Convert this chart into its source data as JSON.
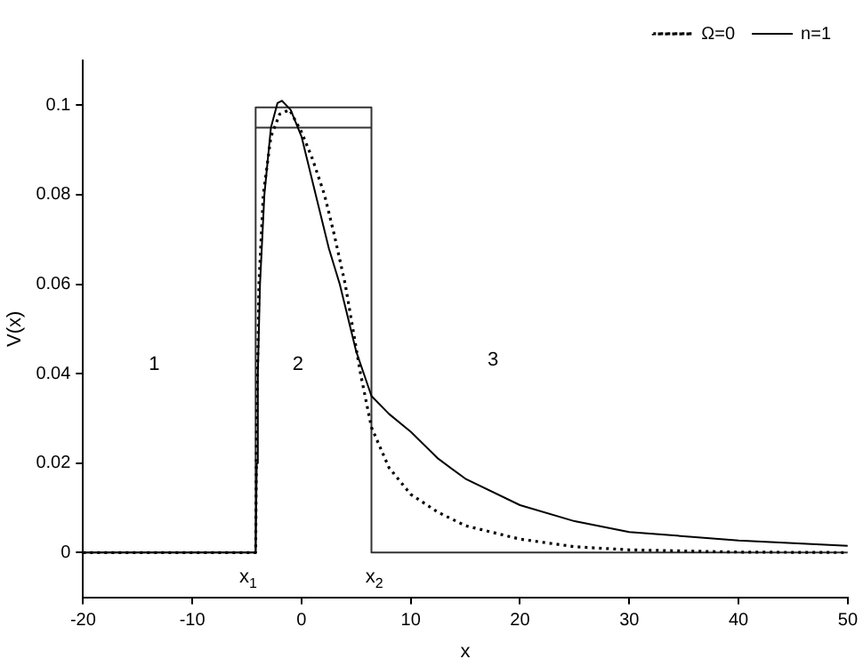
{
  "chart_data": {
    "type": "line",
    "xlabel": "x",
    "ylabel": "V(x)",
    "xlim": [
      -20,
      50
    ],
    "ylim": [
      -0.01,
      0.11
    ],
    "xticks": [
      -20,
      -10,
      0,
      10,
      20,
      30,
      40,
      50
    ],
    "yticks": [
      0,
      0.02,
      0.04,
      0.06,
      0.08,
      0.1
    ],
    "grid": false,
    "legend": "top right",
    "marker": "none",
    "series": [
      {
        "name": "Ω=0",
        "color": "#000000",
        "line_style": "dotted",
        "x": [
          -20,
          -4.2,
          -4.1,
          -3.9,
          -3.5,
          -2.8,
          -2,
          -1.1,
          0,
          1,
          2.1,
          3,
          4,
          5.4,
          6.4,
          8,
          10,
          12.5,
          15,
          20,
          25,
          30,
          40,
          50
        ],
        "values": [
          0,
          0,
          0.03,
          0.06,
          0.08,
          0.093,
          0.098,
          0.099,
          0.094,
          0.088,
          0.08,
          0.071,
          0.06,
          0.04,
          0.028,
          0.019,
          0.013,
          0.009,
          0.006,
          0.003,
          0.0013,
          0.0006,
          0.0001,
          0
        ]
      },
      {
        "name": "n=1",
        "color": "#000000",
        "line_style": "solid",
        "x": [
          -20,
          -4.2,
          -4.1,
          -4.0,
          -3.8,
          -3.4,
          -2.8,
          -2.2,
          -1.8,
          -1,
          0,
          1.3,
          2.5,
          3.5,
          5,
          6.4,
          8,
          10,
          12.5,
          15,
          20,
          25,
          30,
          40,
          50
        ],
        "values": [
          0,
          0,
          0.02,
          0.04,
          0.06,
          0.08,
          0.095,
          0.1005,
          0.101,
          0.099,
          0.093,
          0.08,
          0.068,
          0.06,
          0.045,
          0.035,
          0.031,
          0.027,
          0.021,
          0.0165,
          0.0106,
          0.007,
          0.0046,
          0.0027,
          0.0015
        ]
      },
      {
        "color": "#333333",
        "line_style": "solid",
        "x": [
          -20,
          -4.2,
          -4.2,
          6.4,
          6.4,
          50
        ],
        "values": [
          0,
          0,
          0.0995,
          0.0995,
          0,
          0
        ]
      },
      {
        "color": "#333333",
        "line_style": "solid",
        "x": [
          -4.2,
          6.4
        ],
        "values": [
          0.095,
          0.095
        ]
      }
    ],
    "annotations": [
      "1",
      "2",
      "3",
      "x$_{1}$",
      "x$_{2}$"
    ]
  }
}
